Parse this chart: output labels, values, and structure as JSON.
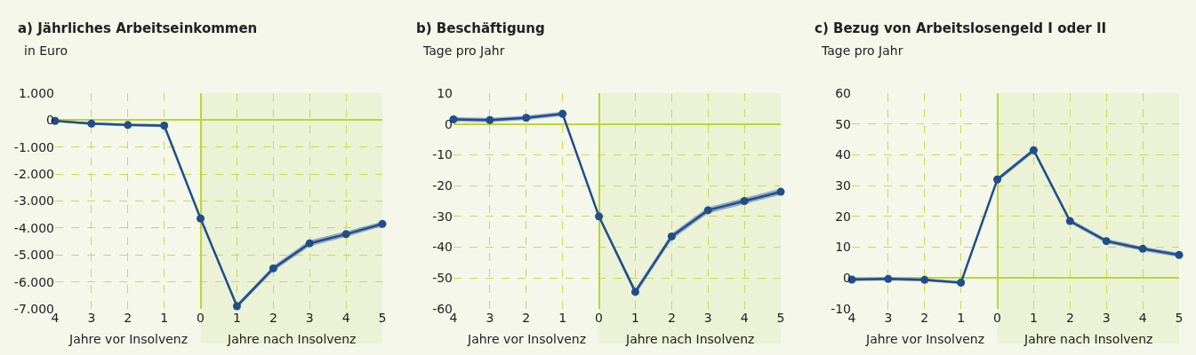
{
  "chart_data": [
    {
      "type": "line",
      "title": "a) Jährliches Arbeitseinkommen",
      "ylabel": "in Euro",
      "x": [
        -4,
        -3,
        -2,
        -1,
        0,
        1,
        2,
        3,
        4,
        5
      ],
      "series": [
        {
          "color": "#1f4e8c",
          "values": [
            -30,
            -130,
            -180,
            -200,
            -3650,
            -6900,
            -5500,
            -4570,
            -4230,
            -3850
          ],
          "lower": [
            -60,
            -180,
            -230,
            -260,
            -3700,
            -6980,
            -5600,
            -4680,
            -4330,
            -3940
          ],
          "upper": [
            0,
            -80,
            -130,
            -140,
            -3600,
            -6820,
            -5400,
            -4460,
            -4130,
            -3760
          ]
        }
      ],
      "xlim": [
        -4,
        5
      ],
      "xticks": [
        {
          "value": -4,
          "label": "4"
        },
        {
          "value": -3,
          "label": "3"
        },
        {
          "value": -2,
          "label": "2"
        },
        {
          "value": -1,
          "label": "1"
        },
        0,
        1,
        2,
        3,
        4,
        5
      ],
      "ylim": [
        -7000,
        1000
      ],
      "yticks": [
        {
          "value": -7000,
          "label": "-7.000"
        },
        {
          "value": -6000,
          "label": "-6.000"
        },
        {
          "value": -5000,
          "label": "-5.000"
        },
        {
          "value": -4000,
          "label": "-4.000"
        },
        {
          "value": -3000,
          "label": "-3.000"
        },
        {
          "value": -2000,
          "label": "-2.000"
        },
        {
          "value": -1000,
          "label": "-1.000"
        },
        0,
        {
          "value": 1000,
          "label": "1.000"
        }
      ],
      "bands": [
        {
          "axis": "x",
          "from": 0,
          "to": 5,
          "color": "#ebf2d5"
        }
      ],
      "annotations": [
        "Jahre vor Insolvenz",
        "Jahre nach Insolvenz"
      ],
      "grid": true,
      "marker": "circle",
      "line_style": "solid"
    },
    {
      "type": "line",
      "title": "b) Beschäftigung",
      "ylabel": "Tage pro Jahr",
      "x": [
        -4,
        -3,
        -2,
        -1,
        0,
        1,
        2,
        3,
        4,
        5
      ],
      "series": [
        {
          "color": "#1f4e8c",
          "values": [
            1.5,
            1.3,
            2,
            3.3,
            -30,
            -54.5,
            -36.5,
            -28,
            -25,
            -22
          ],
          "lower": [
            0.8,
            0.6,
            1.3,
            2.6,
            -30.5,
            -55.5,
            -37.5,
            -29,
            -26,
            -23
          ],
          "upper": [
            2.2,
            2,
            2.7,
            4,
            -29.5,
            -53.5,
            -35.5,
            -27,
            -24,
            -21
          ]
        }
      ],
      "xlim": [
        -4,
        5
      ],
      "xticks": [
        {
          "value": -4,
          "label": "4"
        },
        {
          "value": -3,
          "label": "3"
        },
        {
          "value": -2,
          "label": "2"
        },
        {
          "value": -1,
          "label": "1"
        },
        0,
        1,
        2,
        3,
        4,
        5
      ],
      "ylim": [
        -60,
        10
      ],
      "yticks": [
        -60,
        -50,
        -40,
        -30,
        -20,
        -10,
        0,
        10
      ],
      "bands": [
        {
          "axis": "x",
          "from": 0,
          "to": 5,
          "color": "#ebf2d5"
        }
      ],
      "annotations": [
        "Jahre vor Insolvenz",
        "Jahre nach Insolvenz"
      ],
      "grid": true,
      "marker": "circle",
      "line_style": "solid"
    },
    {
      "type": "line",
      "title": "c) Bezug von Arbeitslosengeld I oder II",
      "ylabel": "Tage pro Jahr",
      "x": [
        -4,
        -3,
        -2,
        -1,
        0,
        1,
        2,
        3,
        4,
        5
      ],
      "series": [
        {
          "color": "#1f4e8c",
          "values": [
            -0.5,
            -0.3,
            -0.6,
            -1.5,
            32,
            41.5,
            18.5,
            12,
            9.5,
            7.5
          ],
          "lower": [
            -1,
            -0.8,
            -1.1,
            -2,
            31.3,
            40.8,
            17.8,
            11.3,
            8.8,
            6.8
          ],
          "upper": [
            0,
            0.2,
            -0.1,
            -1,
            32.7,
            42.2,
            19.2,
            12.7,
            10.2,
            8.2
          ]
        }
      ],
      "xlim": [
        -4,
        5
      ],
      "xticks": [
        {
          "value": -4,
          "label": "4"
        },
        {
          "value": -3,
          "label": "3"
        },
        {
          "value": -2,
          "label": "2"
        },
        {
          "value": -1,
          "label": "1"
        },
        0,
        1,
        2,
        3,
        4,
        5
      ],
      "ylim": [
        -10,
        60
      ],
      "yticks": [
        -10,
        0,
        10,
        20,
        30,
        40,
        50,
        60
      ],
      "bands": [
        {
          "axis": "x",
          "from": 0,
          "to": 5,
          "color": "#ebf2d5"
        }
      ],
      "annotations": [
        "Jahre vor Insolvenz",
        "Jahre nach Insolvenz"
      ],
      "grid": true,
      "marker": "circle",
      "line_style": "solid"
    }
  ]
}
